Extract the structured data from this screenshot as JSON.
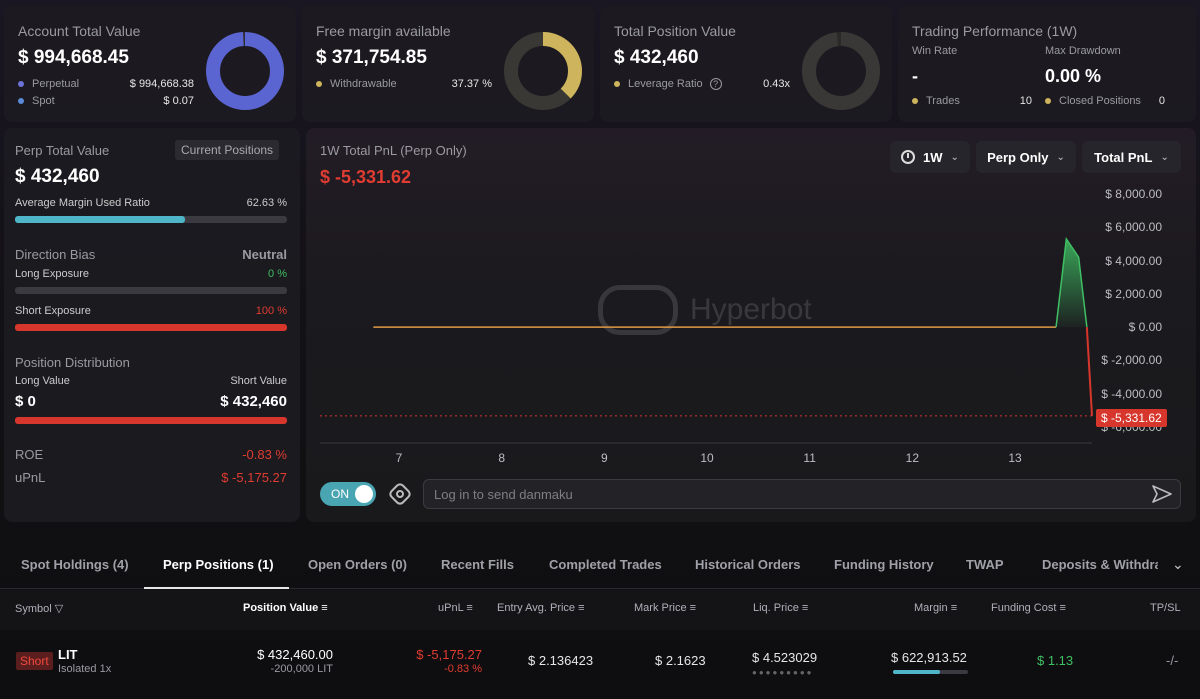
{
  "summary": {
    "account": {
      "title": "Account Total Value",
      "value": "$ 994,668.45",
      "rows": [
        {
          "label": "Perpetual",
          "value": "$ 994,668.38",
          "color": "#6b73d6"
        },
        {
          "label": "Spot",
          "value": "$ 0.07",
          "color": "#5b8bd6"
        }
      ],
      "ring_color": "#5b65d1",
      "ring_fraction": 0.99
    },
    "margin": {
      "title": "Free margin available",
      "value": "$ 371,754.85",
      "row_label": "Withdrawable",
      "row_value": "37.37 %",
      "ring_color": "#cdb45d",
      "ring_fraction": 0.3737
    },
    "position": {
      "title": "Total Position Value",
      "value": "$ 432,460",
      "row_label": "Leverage Ratio",
      "row_value": "0.43x",
      "ring_color": "#3a3836",
      "ring_fraction": 0.98
    },
    "performance": {
      "title": "Trading Performance (1W)",
      "win_rate_label": "Win Rate",
      "win_rate_value": "-",
      "drawdown_label": "Max Drawdown",
      "drawdown_value": "0.00 %",
      "trades_label": "Trades",
      "trades_value": "10",
      "closed_label": "Closed Positions",
      "closed_value": "0"
    }
  },
  "perp": {
    "title": "Perp Total Value",
    "badge": "Current Positions",
    "value": "$ 432,460",
    "margin_label": "Average Margin Used Ratio",
    "margin_value": "62.63 %",
    "margin_fraction": 0.6263,
    "bias_label": "Direction Bias",
    "bias_value": "Neutral",
    "long_label": "Long Exposure",
    "long_value": "0 %",
    "long_fraction": 0,
    "short_label": "Short Exposure",
    "short_value": "100 %",
    "short_fraction": 1,
    "dist_label": "Position Distribution",
    "long_value_label": "Long Value",
    "short_value_label": "Short Value",
    "long_amount": "$ 0",
    "short_amount": "$ 432,460",
    "roe_label": "ROE",
    "roe_value": "-0.83 %",
    "upnl_label": "uPnL",
    "upnl_value": "$ -5,175.27"
  },
  "pnl": {
    "title": "1W Total PnL (Perp Only)",
    "value": "$ -5,331.62",
    "period": "1W",
    "scope": "Perp Only",
    "metric": "Total PnL",
    "watermark": "Hyperbot",
    "toggle": "ON",
    "danmaku_placeholder": "Log in to send danmaku"
  },
  "chart_data": {
    "type": "area",
    "y_ticks": [
      "$ 8,000.00",
      "$ 6,000.00",
      "$ 4,000.00",
      "$ 2,000.00",
      "$ 0.00",
      "$ -2,000.00",
      "$ -4,000.00",
      "$ -6,000.00"
    ],
    "x_ticks": [
      "7",
      "8",
      "9",
      "10",
      "11",
      "12",
      "13"
    ],
    "ylim": [
      -6000,
      8000
    ],
    "x": [
      6.75,
      13.4,
      13.5,
      13.62,
      13.7,
      13.75
    ],
    "y": [
      0,
      0,
      5300,
      4200,
      0,
      -5331.62
    ],
    "current_label": "$ -5,331.62",
    "grid": false
  },
  "tabs": [
    "Spot Holdings (4)",
    "Perp Positions (1)",
    "Open Orders (0)",
    "Recent Fills",
    "Completed Trades",
    "Historical Orders",
    "Funding History",
    "TWAP",
    "Deposits & Withdraw"
  ],
  "active_tab": 1,
  "table": {
    "headers": {
      "symbol": "Symbol",
      "position_value": "Position Value",
      "upnl": "uPnL",
      "entry": "Entry Avg. Price",
      "mark": "Mark Price",
      "liq": "Liq. Price",
      "margin": "Margin",
      "funding": "Funding Cost",
      "tpsl": "TP/SL"
    },
    "row": {
      "side": "Short",
      "coin": "LIT",
      "mode": "Isolated 1x",
      "position_value": "$ 432,460.00",
      "size": "-200,000 LIT",
      "upnl": "$ -5,175.27",
      "upnl_pct": "-0.83 %",
      "entry": "$ 2.136423",
      "mark": "$ 2.1623",
      "liq": "$ 4.523029",
      "margin": "$ 622,913.52",
      "margin_fraction": 0.62,
      "funding": "$ 1.13",
      "tpsl": "-/-"
    }
  }
}
